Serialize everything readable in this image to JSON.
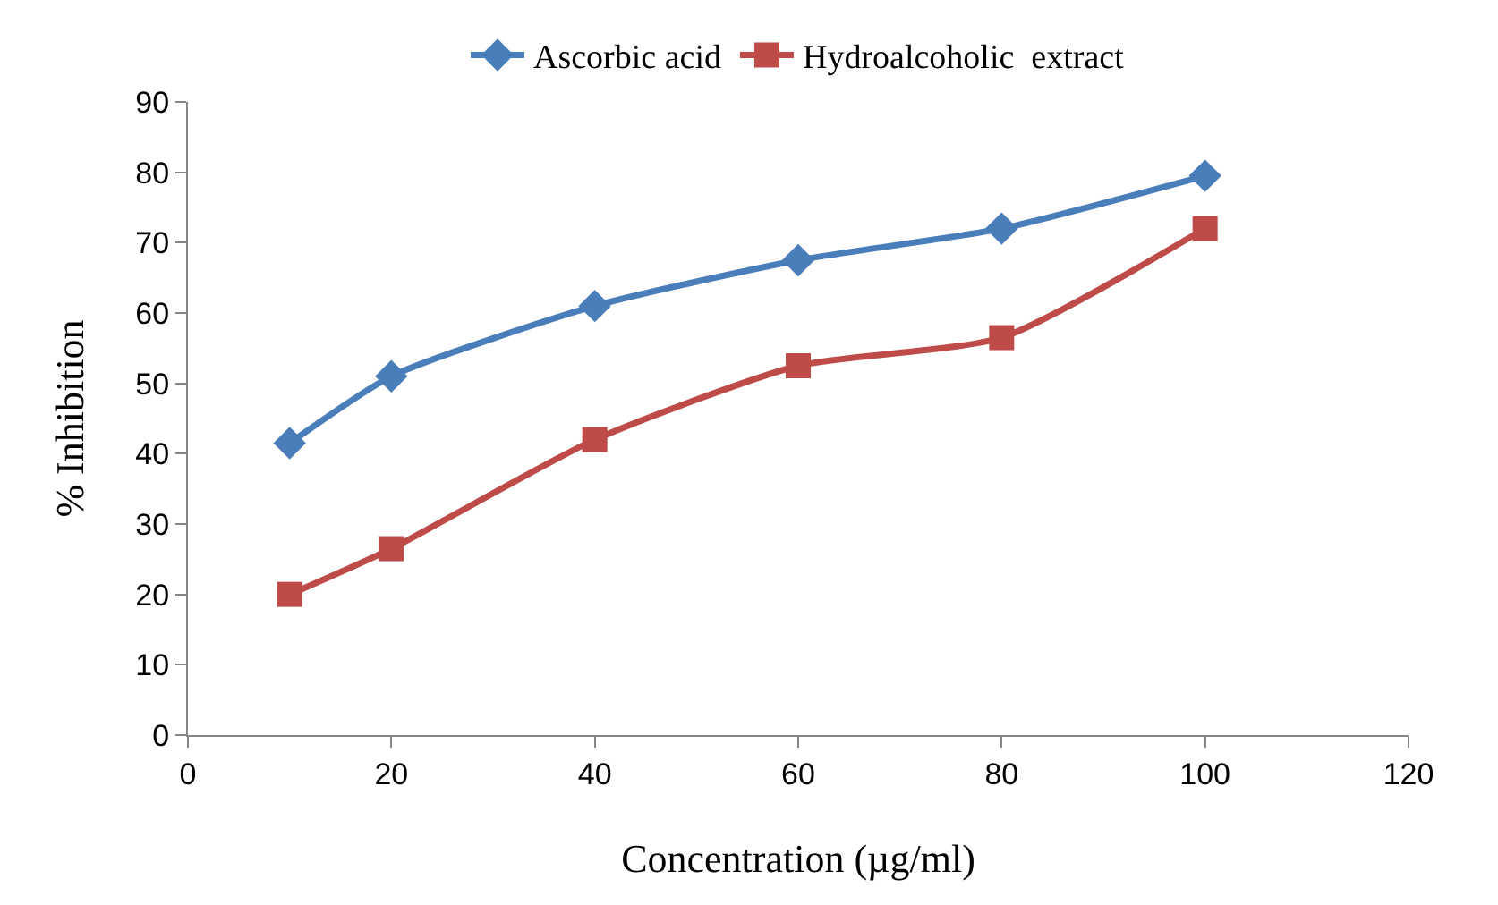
{
  "chart_data": {
    "type": "line",
    "xlabel": "Concentration (µg/ml)",
    "ylabel": "% Inhibition",
    "x": [
      10,
      20,
      40,
      60,
      80,
      100
    ],
    "series": [
      {
        "name": "Ascorbic acid",
        "color": "#4a7ebb",
        "marker": "diamond",
        "values": [
          41.5,
          51,
          61,
          67.5,
          72,
          79.5
        ]
      },
      {
        "name": "Hydroalcoholic  extract",
        "color": "#be4b48",
        "marker": "square",
        "values": [
          20,
          26.5,
          42,
          52.5,
          56.5,
          72
        ]
      }
    ],
    "xlim": [
      0,
      120
    ],
    "xticks": [
      0,
      20,
      40,
      60,
      80,
      100,
      120
    ],
    "ylim": [
      0,
      90
    ],
    "yticks": [
      0,
      10,
      20,
      30,
      40,
      50,
      60,
      70,
      80,
      90
    ],
    "grid": false,
    "legend": "top",
    "line_style": "solid"
  }
}
